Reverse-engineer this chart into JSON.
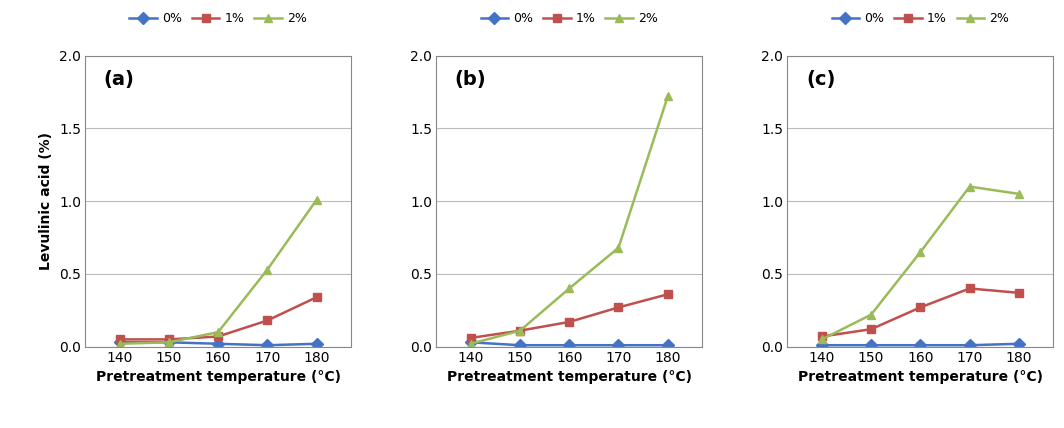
{
  "x": [
    140,
    150,
    160,
    170,
    180
  ],
  "panels": [
    {
      "label": "(a)",
      "series": {
        "0%": [
          0.03,
          0.03,
          0.02,
          0.01,
          0.02
        ],
        "1%": [
          0.05,
          0.05,
          0.07,
          0.18,
          0.34
        ],
        "2%": [
          0.02,
          0.03,
          0.1,
          0.53,
          1.01
        ]
      }
    },
    {
      "label": "(b)",
      "series": {
        "0%": [
          0.03,
          0.01,
          0.01,
          0.01,
          0.01
        ],
        "1%": [
          0.06,
          0.11,
          0.17,
          0.27,
          0.36
        ],
        "2%": [
          0.02,
          0.11,
          0.4,
          0.68,
          1.72
        ]
      }
    },
    {
      "label": "(c)",
      "series": {
        "0%": [
          0.01,
          0.01,
          0.01,
          0.01,
          0.02
        ],
        "1%": [
          0.07,
          0.12,
          0.27,
          0.4,
          0.37
        ],
        "2%": [
          0.05,
          0.22,
          0.65,
          1.1,
          1.05
        ]
      }
    }
  ],
  "colors": {
    "0%": "#4472C4",
    "1%": "#C0504D",
    "2%": "#9BBB59"
  },
  "markers": {
    "0%": "D",
    "1%": "s",
    "2%": "^"
  },
  "ylabel": "Levulinic acid (%)",
  "xlabel": "Pretreatment temperature (°C)",
  "ylim": [
    0.0,
    2.0
  ],
  "yticks": [
    0.0,
    0.5,
    1.0,
    1.5,
    2.0
  ],
  "background_color": "#FFFFFF",
  "legend_labels": [
    "0%",
    "1%",
    "2%"
  ],
  "panel_label_fontsize": 14,
  "axis_label_fontsize": 10,
  "tick_fontsize": 10,
  "line_width": 1.8,
  "marker_size": 6
}
